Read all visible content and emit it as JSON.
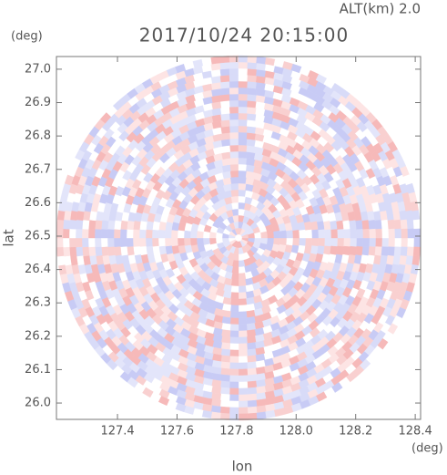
{
  "chart_data": {
    "type": "radar-ppi",
    "title": "2017/10/24 20:15:00",
    "subtitle": "ALT(km) 2.0",
    "x_label": "lon",
    "y_label": "lat",
    "x_unit": "(deg)",
    "y_unit": "(deg)",
    "xlim": [
      127.195,
      128.418
    ],
    "ylim": [
      25.951,
      27.038
    ],
    "xticks": [
      127.4,
      127.6,
      127.8,
      {
        "value": 128.0,
        "label": "128.0"
      },
      128.2,
      128.4
    ],
    "yticks": [
      {
        "value": 26.0,
        "label": "26.0"
      },
      26.1,
      26.2,
      26.3,
      26.4,
      26.5,
      26.6,
      26.7,
      26.8,
      26.9,
      {
        "value": 27.0,
        "label": "27.0"
      }
    ]
  }
}
